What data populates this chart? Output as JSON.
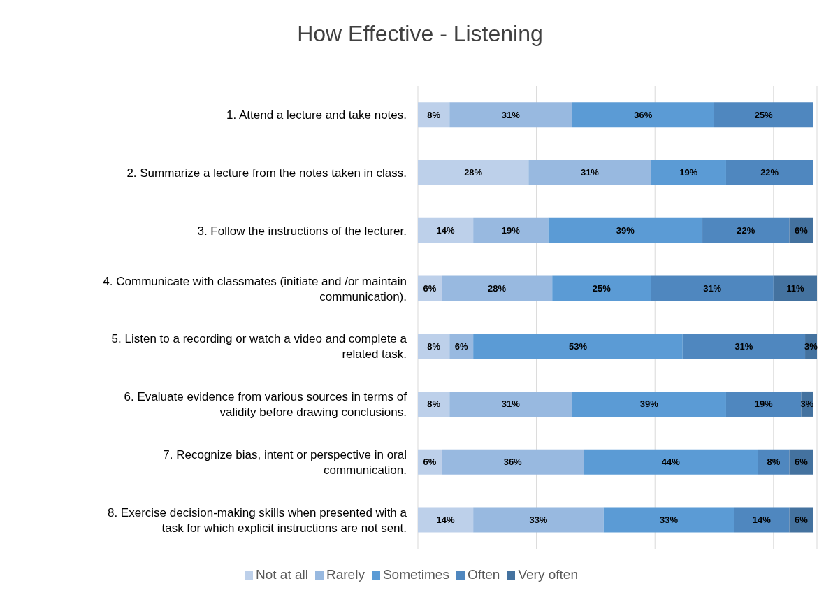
{
  "chart_data": {
    "type": "bar",
    "title": "How Effective - Listening",
    "orientation": "horizontal",
    "stacked": true,
    "categories": [
      "1. Attend a lecture and take notes.",
      "2. Summarize a lecture from the notes taken in class.",
      "3. Follow the instructions of the lecturer.",
      "4. Communicate with classmates (initiate and /or maintain communication).",
      "5. Listen to a recording or watch a video and complete a related task.",
      "6. Evaluate evidence from various sources in terms of validity before drawing conclusions.",
      "7. Recognize bias, intent or perspective in oral communication.",
      "8. Exercise decision-making skills when presented with a task for which explicit instructions are not sent."
    ],
    "series": [
      {
        "name": "Not at all",
        "color": "#bdd0ea",
        "values": [
          8,
          28,
          14,
          6,
          8,
          8,
          6,
          14
        ],
        "value_labels": [
          "8%",
          "28%",
          "14%",
          "6%",
          "8%",
          "8%",
          "6%",
          "14%"
        ]
      },
      {
        "name": "Rarely",
        "color": "#98b9e0",
        "values": [
          31,
          31,
          19,
          28,
          6,
          31,
          36,
          33
        ],
        "value_labels": [
          "31%",
          "31%",
          "19%",
          "28%",
          "6%",
          "31%",
          "36%",
          "33%"
        ]
      },
      {
        "name": "Sometimes",
        "color": "#5b9bd5",
        "values": [
          36,
          19,
          39,
          25,
          53,
          39,
          44,
          33
        ],
        "value_labels": [
          "36%",
          "19%",
          "39%",
          "25%",
          "53%",
          "39%",
          "44%",
          "33%"
        ]
      },
      {
        "name": "Often",
        "color": "#4f87bf",
        "values": [
          25,
          22,
          22,
          31,
          31,
          19,
          8,
          14
        ],
        "value_labels": [
          "25%",
          "22%",
          "22%",
          "31%",
          "31%",
          "19%",
          "8%",
          "14%"
        ]
      },
      {
        "name": "Very often",
        "color": "#44729f",
        "values": [
          null,
          null,
          6,
          11,
          3,
          3,
          6,
          6
        ],
        "value_labels": [
          null,
          null,
          "6%",
          "11%",
          "3%",
          "3%",
          "6%",
          "6%"
        ]
      }
    ],
    "tick_labels": "y",
    "grid": "x",
    "legend": "bottom"
  }
}
